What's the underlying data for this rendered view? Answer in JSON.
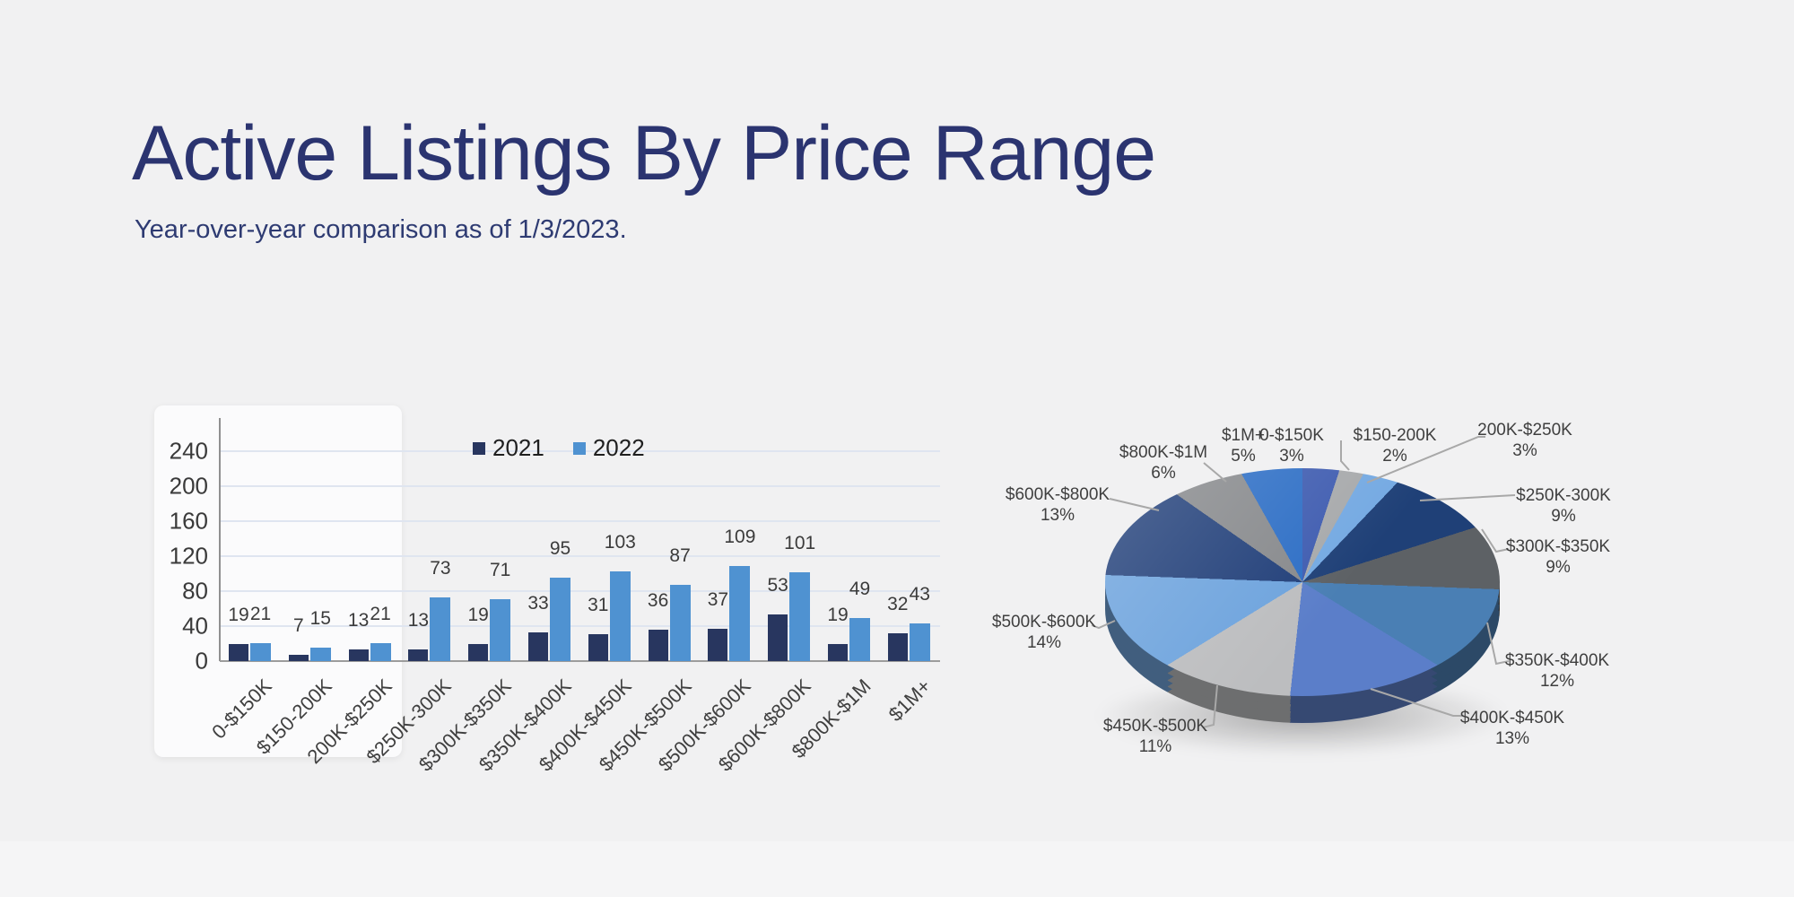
{
  "page": {
    "title": "Active Listings By Price Range",
    "subtitle": "Year-over-year comparison as of 1/3/2023."
  },
  "chart_data": [
    {
      "type": "bar",
      "title": "Active Listings By Price Range",
      "categories": [
        "0-$150K",
        "$150-200K",
        "200K-$250K",
        "$250K-300K",
        "$300K-$350K",
        "$350K-$400K",
        "$400K-$450K",
        "$450K-$500K",
        "$500K-$600K",
        "$600K-$800K",
        "$800K-$1M",
        "$1M+"
      ],
      "series": [
        {
          "name": "2021",
          "color": "#28365f",
          "values": [
            19,
            7,
            13,
            13,
            19,
            33,
            31,
            36,
            37,
            53,
            19,
            32
          ]
        },
        {
          "name": "2022",
          "color": "#4f92d1",
          "values": [
            21,
            15,
            21,
            73,
            71,
            95,
            103,
            87,
            109,
            101,
            49,
            43
          ]
        }
      ],
      "ylabel": "",
      "xlabel": "",
      "ylim": [
        0,
        260
      ],
      "yticks": [
        0,
        40,
        80,
        120,
        160,
        200,
        240
      ],
      "grid": true,
      "legend_position": "top"
    },
    {
      "type": "pie",
      "labels": [
        "0-$150K",
        "$150-200K",
        "200K-$250K",
        "$250K-300K",
        "$300K-$350K",
        "$350K-$400K",
        "$400K-$450K",
        "$450K-$500K",
        "$500K-$600K",
        "$600K-$800K",
        "$800K-$1M",
        "$1M+"
      ],
      "values": [
        3,
        2,
        3,
        9,
        9,
        12,
        13,
        11,
        14,
        13,
        6,
        5
      ],
      "unit": "%",
      "colors": [
        "#3f5cb0",
        "#a7a9ab",
        "#74a9e2",
        "#1f4077",
        "#5d6165",
        "#4a7fb4",
        "#5b7ec9",
        "#bcbdbf",
        "#6da3dd",
        "#213f79",
        "#87898c",
        "#2d6ec5"
      ],
      "leader_line_color": "#a8a8a8",
      "style": "3d"
    }
  ]
}
